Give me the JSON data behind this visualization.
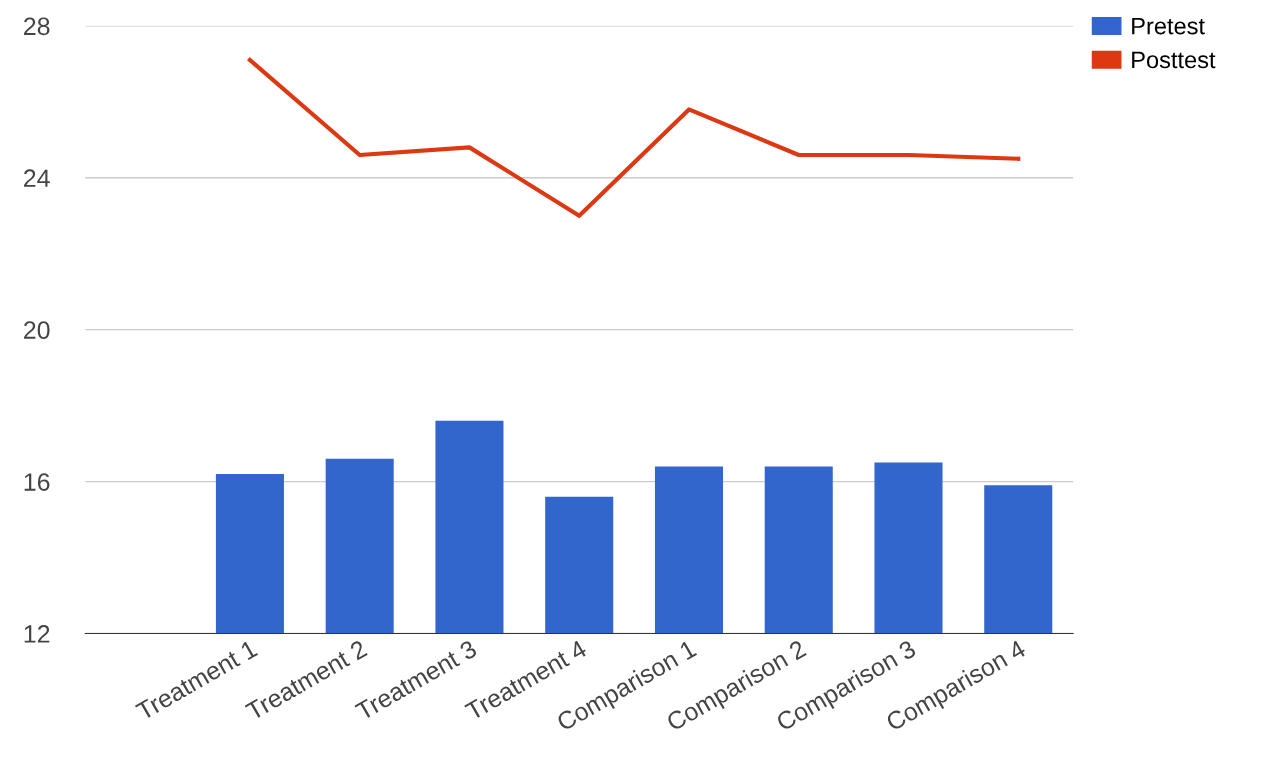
{
  "chart_data": {
    "type": "bar",
    "categories": [
      null,
      "Treatment 1",
      "Treatment 2",
      "Treatment 3",
      "Treatment 4",
      "Comparison 1",
      "Comparison 2",
      "Comparison 3",
      "Comparison 4"
    ],
    "series": [
      {
        "name": "Pretest",
        "color": "#3366cc",
        "values": [
          null,
          16.2,
          16.6,
          17.6,
          15.6,
          16.4,
          16.4,
          16.5,
          15.9
        ]
      },
      {
        "name": "Posttest",
        "type": "line",
        "color": "#dc3912",
        "values": [
          null,
          27.1,
          24.6,
          24.8,
          23.0,
          25.8,
          24.6,
          24.6,
          24.5
        ]
      }
    ],
    "ylim": [
      12,
      28
    ],
    "yticks": [
      12,
      16,
      20,
      24,
      28
    ],
    "grid": "y",
    "legend": "top right"
  }
}
